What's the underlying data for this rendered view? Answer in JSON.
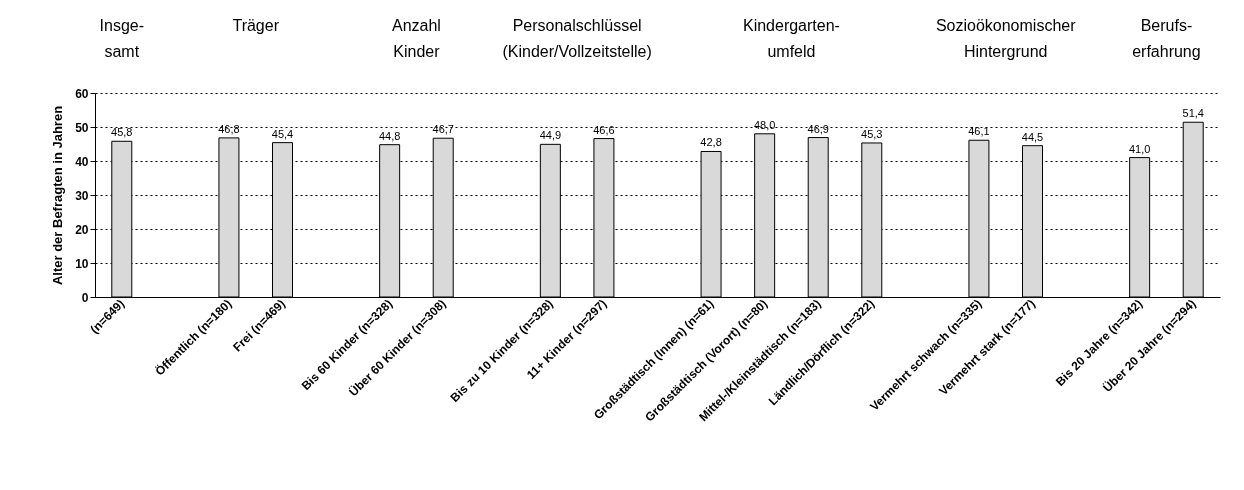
{
  "chart_data": {
    "type": "bar",
    "ylabel": "Alter der Befragten in Jahren",
    "categories": [
      "(n=649)",
      null,
      "Öffentlich (n=180)",
      "Frei (n=469)",
      null,
      "Bis 60 Kinder (n=328)",
      "Über 60 Kinder (n=308)",
      null,
      "Bis zu 10 Kinder (n=328)",
      "11+ Kinder (n=297)",
      null,
      "Großstädtisch (Innen) (n=61)",
      "Großstädtisch (Vorort) (n=80)",
      "Mittel-/Kleinstädtisch (n=183)",
      "Ländlich/Dörflich (n=322)",
      null,
      "Vermehrt schwach (n=335)",
      "Vermehrt stark (n=177)",
      null,
      "Bis 20 Jahre (n=342)",
      "Über 20 Jahre (n=294)"
    ],
    "values": [
      45.8,
      null,
      46.8,
      45.4,
      null,
      44.8,
      46.7,
      null,
      44.9,
      46.6,
      null,
      42.8,
      48.0,
      46.9,
      45.3,
      null,
      46.1,
      44.5,
      null,
      41.0,
      51.4
    ],
    "value_labels": [
      "45,8",
      null,
      "46,8",
      "45,4",
      null,
      "44,8",
      "46,7",
      null,
      "44,9",
      "46,6",
      null,
      "42,8",
      "48,0",
      "46,9",
      "45,3",
      null,
      "46,1",
      "44,5",
      null,
      "41,0",
      "51,4"
    ],
    "color": "#d9d9d9",
    "ylim": [
      0,
      60
    ],
    "yticks": [
      0,
      10,
      20,
      30,
      40,
      50,
      60
    ],
    "grid": "y",
    "annotations": [
      "Insge-\nsamt",
      "Träger",
      "Anzahl\nKinder",
      "Personalschlüssel\n(Kinder/Vollzeitstelle)",
      "Kindergarten-\numfeld",
      "Sozioökonomischer\nHintergrund",
      "Berufs-\nerfahrung"
    ]
  }
}
